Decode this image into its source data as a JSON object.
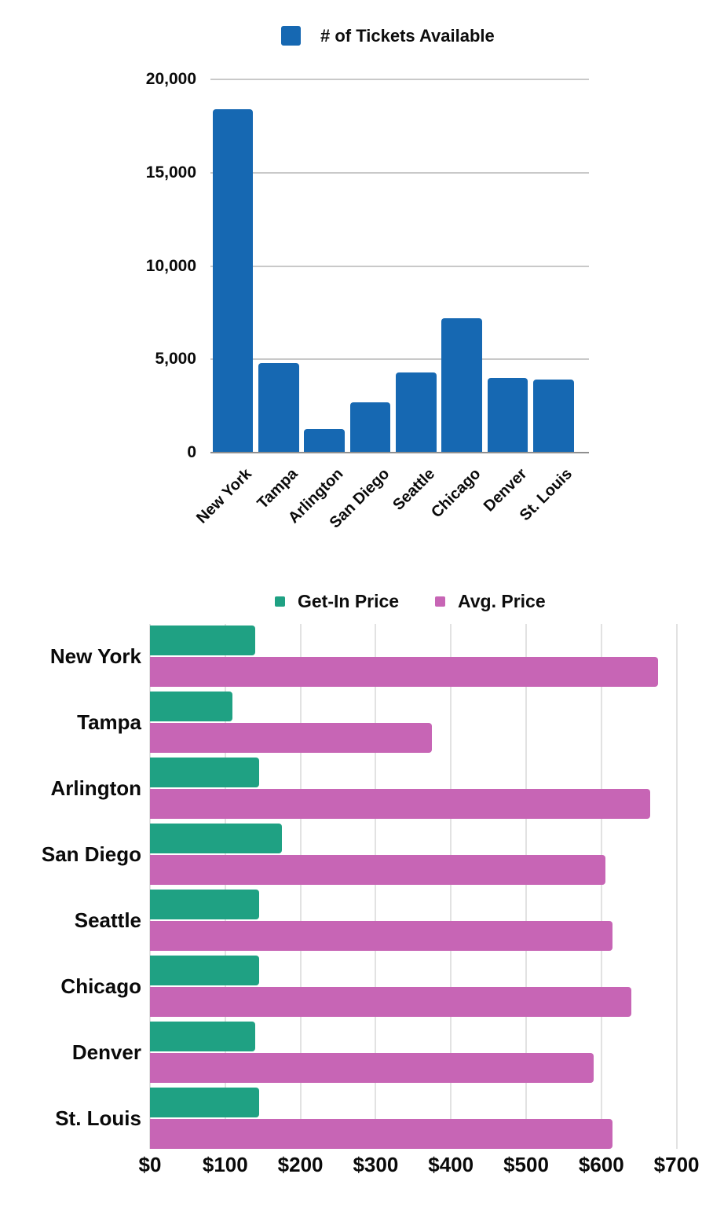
{
  "chart_data": [
    {
      "type": "bar",
      "orientation": "vertical",
      "title": "",
      "legend": [
        {
          "label": "# of Tickets Available",
          "color": "#1668B2"
        }
      ],
      "legend_position": "top",
      "categories": [
        "New York",
        "Tampa",
        "Arlington",
        "San Diego",
        "Seattle",
        "Chicago",
        "Denver",
        "St. Louis"
      ],
      "values": [
        18400,
        4800,
        1250,
        2700,
        4300,
        7200,
        4000,
        3900
      ],
      "xlabel": "",
      "ylabel": "",
      "ylim": [
        0,
        20000
      ],
      "yticks": [
        {
          "v": 0,
          "label": "0"
        },
        {
          "v": 5000,
          "label": "5,000"
        },
        {
          "v": 10000,
          "label": "10,000"
        },
        {
          "v": 15000,
          "label": "15,000"
        },
        {
          "v": 20000,
          "label": "20,000"
        }
      ],
      "grid": "horizontal"
    },
    {
      "type": "bar",
      "orientation": "horizontal",
      "title": "",
      "legend_position": "top",
      "categories": [
        "New York",
        "Tampa",
        "Arlington",
        "San Diego",
        "Seattle",
        "Chicago",
        "Denver",
        "St. Louis"
      ],
      "series": [
        {
          "name": "Get-In Price",
          "color": "#1FA183",
          "values": [
            140,
            110,
            145,
            175,
            145,
            145,
            140,
            145
          ]
        },
        {
          "name": "Avg. Price",
          "color": "#C765B5",
          "values": [
            675,
            375,
            665,
            605,
            615,
            640,
            590,
            615
          ]
        }
      ],
      "xlabel": "",
      "xlim": [
        0,
        700
      ],
      "xticks": [
        {
          "v": 0,
          "label": "$0"
        },
        {
          "v": 100,
          "label": "$100"
        },
        {
          "v": 200,
          "label": "$200"
        },
        {
          "v": 300,
          "label": "$300"
        },
        {
          "v": 400,
          "label": "$400"
        },
        {
          "v": 500,
          "label": "$500"
        },
        {
          "v": 600,
          "label": "$600"
        },
        {
          "v": 700,
          "label": "$700"
        }
      ],
      "grid": "vertical"
    }
  ]
}
